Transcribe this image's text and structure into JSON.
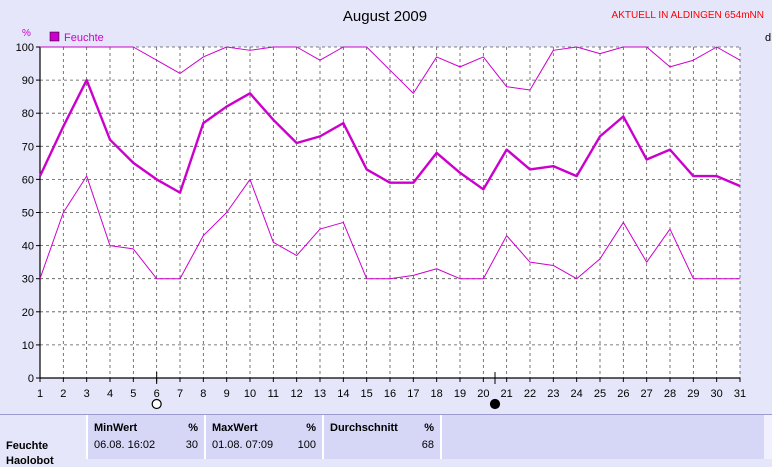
{
  "chart_data": {
    "type": "line",
    "title": "August 2009",
    "subtitle": "AKTUELL IN ALDINGEN 654mNN",
    "ylabel": "%",
    "right_label": "d",
    "ylim": [
      0,
      100
    ],
    "yticks": [
      0,
      10,
      20,
      30,
      40,
      50,
      60,
      70,
      80,
      90,
      100
    ],
    "x": [
      1,
      2,
      3,
      4,
      5,
      6,
      7,
      8,
      9,
      10,
      11,
      12,
      13,
      14,
      15,
      16,
      17,
      18,
      19,
      20,
      21,
      22,
      23,
      24,
      25,
      26,
      27,
      28,
      29,
      30,
      31
    ],
    "legend": [
      {
        "label": "Feuchte",
        "color": "#cc00cc"
      }
    ],
    "series": [
      {
        "role": "max",
        "color": "#cc00cc",
        "values": [
          100,
          100,
          100,
          100,
          100,
          96,
          92,
          97,
          100,
          99,
          100,
          100,
          96,
          100,
          100,
          93,
          86,
          97,
          94,
          97,
          88,
          87,
          99,
          100,
          98,
          100,
          100,
          94,
          96,
          100,
          96
        ]
      },
      {
        "role": "mean",
        "color": "#cc00cc",
        "values": [
          61,
          76,
          90,
          72,
          65,
          60,
          56,
          77,
          82,
          86,
          78,
          71,
          73,
          77,
          63,
          59,
          59,
          68,
          62,
          57,
          69,
          63,
          64,
          61,
          73,
          79,
          66,
          69,
          61,
          61,
          58
        ]
      },
      {
        "role": "min",
        "color": "#cc00cc",
        "values": [
          30,
          50,
          61,
          40,
          39,
          30,
          30,
          43,
          50,
          60,
          41,
          37,
          45,
          47,
          30,
          30,
          31,
          33,
          30,
          30,
          43,
          35,
          34,
          30,
          36,
          47,
          35,
          45,
          30,
          30,
          30
        ]
      }
    ],
    "moon_phases": [
      {
        "day": 6,
        "phase": "full"
      },
      {
        "day": 20.5,
        "phase": "new"
      }
    ],
    "grid": true
  },
  "stats": {
    "min_header": "MinWert",
    "max_header": "MaxWert",
    "avg_header": "Durchschnitt",
    "unit": "%",
    "row_label": "Feuchte",
    "row_label2": "Haolobot",
    "min_time": "06.08.  16:02",
    "min_value": "30",
    "max_time": "01.08.  07:09",
    "max_value": "100",
    "avg_value": "68"
  }
}
